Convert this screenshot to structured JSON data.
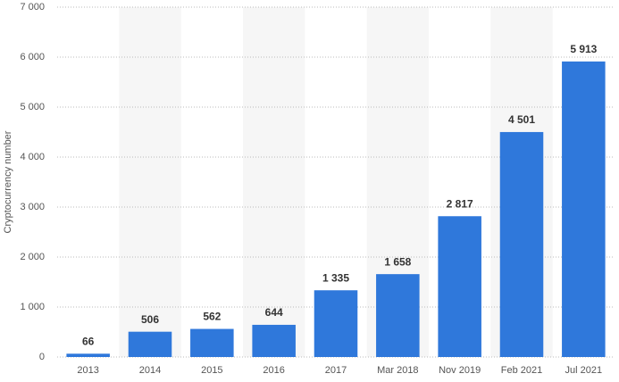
{
  "chart_data": {
    "type": "bar",
    "y_label": "Cryptocurrency number",
    "categories": [
      "2013",
      "2014",
      "2015",
      "2016",
      "2017",
      "Mar 2018",
      "Nov 2019",
      "Feb 2021",
      "Jul 2021"
    ],
    "values": [
      66,
      506,
      562,
      644,
      1335,
      1658,
      2817,
      4501,
      5913
    ],
    "value_labels": [
      "66",
      "506",
      "562",
      "644",
      "1 335",
      "1 658",
      "2 817",
      "4 501",
      "5 913"
    ],
    "color": "#2f78db",
    "ylim": [
      0,
      7000
    ],
    "yticks": [
      0,
      {
        "value": 1000,
        "label": "1 000"
      },
      {
        "value": 2000,
        "label": "2 000"
      },
      {
        "value": 3000,
        "label": "3 000"
      },
      {
        "value": 4000,
        "label": "4 000"
      },
      {
        "value": 5000,
        "label": "5 000"
      },
      {
        "value": 6000,
        "label": "6 000"
      },
      {
        "value": 7000,
        "label": "7 000"
      }
    ],
    "grid": true
  }
}
